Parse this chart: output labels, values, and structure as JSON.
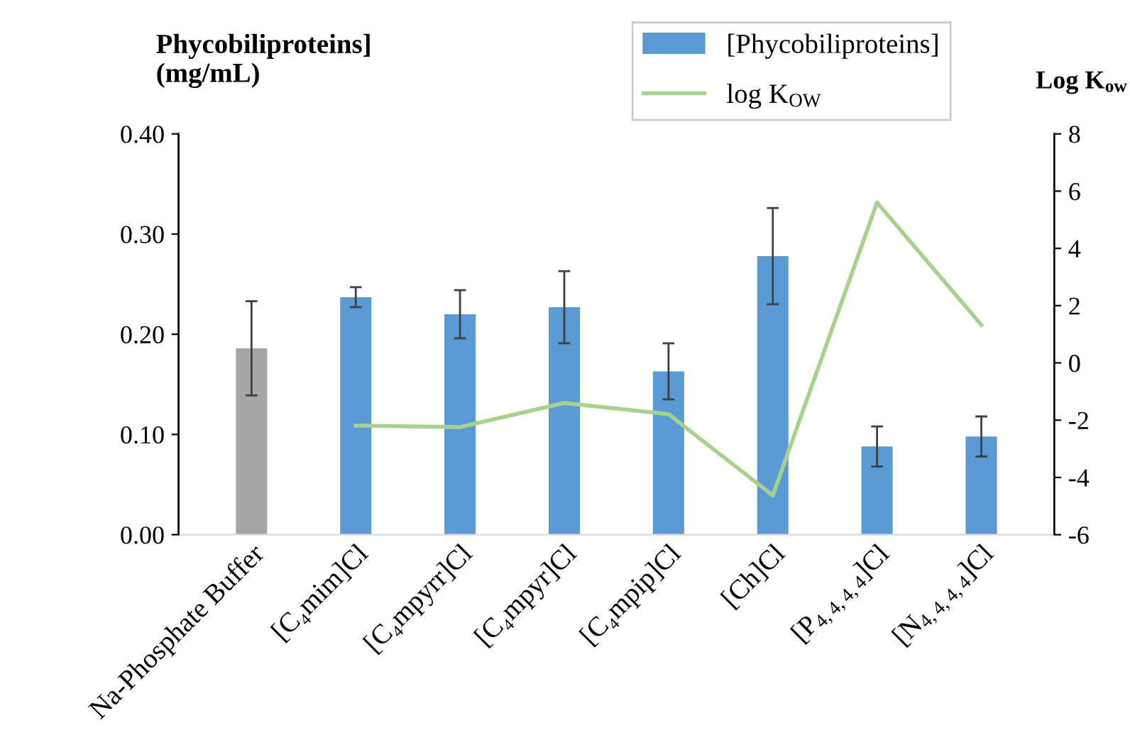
{
  "chart_data": {
    "type": "bar",
    "ylabel": "Phycobiliproteins]\n(mg/mL)",
    "y2label": "Log K$_{ow}$",
    "categories": [
      "Na-Phosphate Buffer",
      "[C₄mim]Cl",
      "[C₄mpyrr]Cl",
      "[C₄mpyr]Cl",
      "[C₄mpip]Cl",
      "[Ch]Cl",
      "[P$_{4,4,4,4}$]Cl",
      "[N$_{4,4,4,4}$]Cl"
    ],
    "series": [
      {
        "name": "[Phycobiliproteins]",
        "color": "#5b9bd5",
        "colors": [
          "#a5a5a5",
          "#5b9bd5",
          "#5b9bd5",
          "#5b9bd5",
          "#5b9bd5",
          "#5b9bd5",
          "#5b9bd5",
          "#5b9bd5"
        ],
        "values": [
          0.186,
          0.237,
          0.22,
          0.227,
          0.163,
          0.278,
          0.088,
          0.098
        ],
        "errors": [
          0.047,
          0.01,
          0.024,
          0.036,
          0.028,
          0.048,
          0.02,
          0.02
        ]
      },
      {
        "name": "log K$_{OW}$",
        "type": "line",
        "axis": "y2",
        "color": "#a9d18e",
        "values": [
          null,
          -2.19,
          -2.24,
          -1.4,
          -1.79,
          -4.63,
          5.6,
          1.33
        ]
      }
    ],
    "ylim": [
      0,
      0.4
    ],
    "yticks": [
      {
        "value": 0,
        "label": "0.00"
      },
      {
        "value": 0.1,
        "label": "0.10"
      },
      {
        "value": 0.2,
        "label": "0.20"
      },
      {
        "value": 0.3,
        "label": "0.30"
      },
      {
        "value": 0.4,
        "label": "0.40"
      }
    ],
    "y2lim": [
      -6,
      8
    ],
    "y2ticks": [
      -6,
      -4,
      -2,
      0,
      2,
      4,
      6,
      8
    ],
    "legend": "top",
    "grid": false,
    "marker": "none"
  }
}
